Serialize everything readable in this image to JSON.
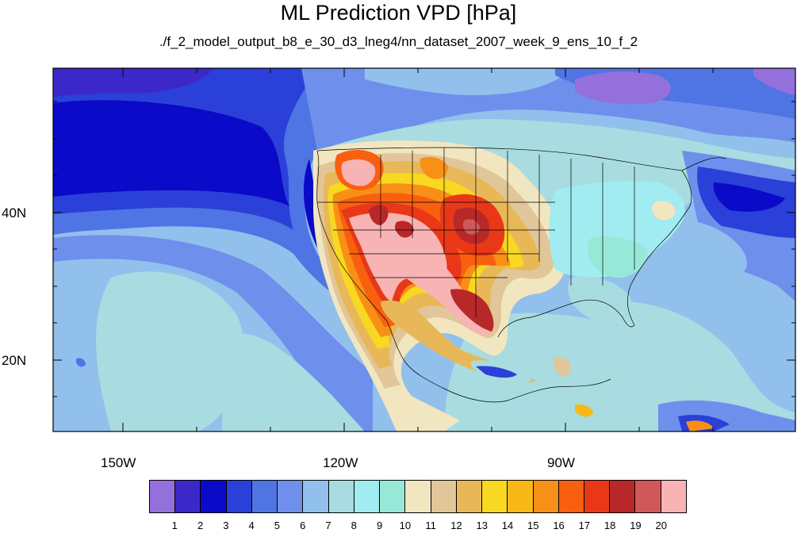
{
  "title": "ML Prediction VPD [hPa]",
  "subtitle": "./f_2_model_output_b8_e_30_d3_lneg4/nn_dataset_2007_week_9_ens_10_f_2",
  "axes": {
    "lon_ticks": [
      {
        "label": "150W",
        "lon": -150
      },
      {
        "label": "120W",
        "lon": -120
      },
      {
        "label": "90W",
        "lon": -90
      }
    ],
    "lat_ticks": [
      {
        "label": "40N",
        "lat": 40
      },
      {
        "label": "20N",
        "lat": 20
      }
    ],
    "lon_range": [
      -159.3,
      -60.7
    ],
    "lat_range": [
      10.2,
      59.5
    ]
  },
  "colorbar": {
    "colors": [
      "#9370db",
      "#3c28c8",
      "#0a0ac8",
      "#2b40d8",
      "#4f74e4",
      "#6e90ec",
      "#92c0ec",
      "#a8dce0",
      "#a0ecf0",
      "#98e8d8",
      "#f2e6c0",
      "#e0c698",
      "#e8b858",
      "#f8d820",
      "#f8b818",
      "#f89018",
      "#f86010",
      "#e83818",
      "#b82828",
      "#d05858",
      "#f8b4b4"
    ],
    "labels": [
      "1",
      "2",
      "3",
      "4",
      "5",
      "6",
      "7",
      "8",
      "9",
      "10",
      "11",
      "12",
      "13",
      "14",
      "15",
      "16",
      "17",
      "18",
      "19",
      "20"
    ]
  }
}
